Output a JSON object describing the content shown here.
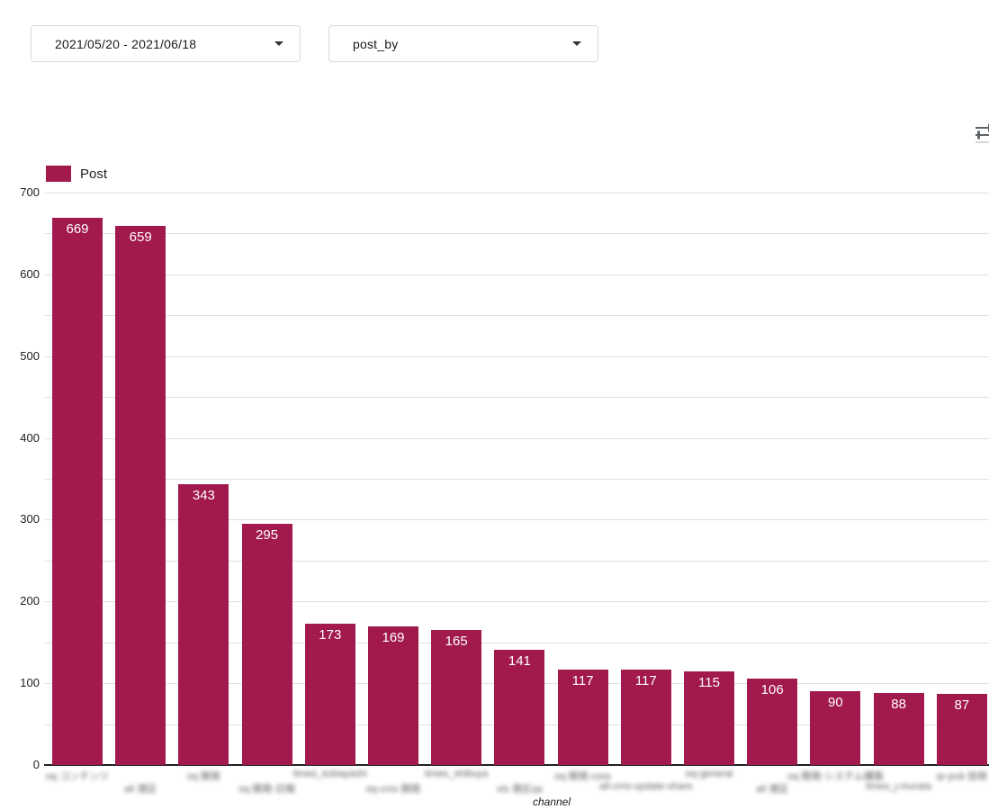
{
  "filters": {
    "date_range": {
      "value": "2021/05/20 - 2021/06/18"
    },
    "dimension": {
      "value": "post_by"
    }
  },
  "chart_data": {
    "type": "bar",
    "title": "",
    "xlabel": "channel",
    "ylabel": "",
    "ylim": [
      0,
      700
    ],
    "ytick_labels": [
      0,
      100,
      200,
      300,
      400,
      500,
      600,
      700
    ],
    "grid": "horizontal gridlines every 50, labels every 100",
    "legend_position": "top-left",
    "categories_blurred_in_screenshot": true,
    "categories": [
      "oq コンテンツ",
      "all 港区",
      "oq 開発",
      "oq 開発-日報",
      "times_kobayashi",
      "oq-cms 開発",
      "times_shibuya",
      "xls 港区qa",
      "oq 開発-core",
      "all-cms-update-share",
      "oq-general",
      "all 港区",
      "oq 開発-システム構築",
      "times_j-murata",
      "qr-pub 技術"
    ],
    "series": [
      {
        "name": "Post",
        "values": [
          669,
          659,
          343,
          295,
          173,
          169,
          165,
          141,
          117,
          117,
          115,
          106,
          90,
          88,
          87
        ]
      }
    ],
    "colors": {
      "bar": "#A2194D",
      "gridline": "#E0E0E0",
      "axis_line": "#212121",
      "value_label": "#FFFFFF"
    }
  },
  "legend": {
    "label": "Post"
  },
  "icons": {
    "top_right": "tune-icon (horizontal sliders, clipped at right edge)"
  }
}
